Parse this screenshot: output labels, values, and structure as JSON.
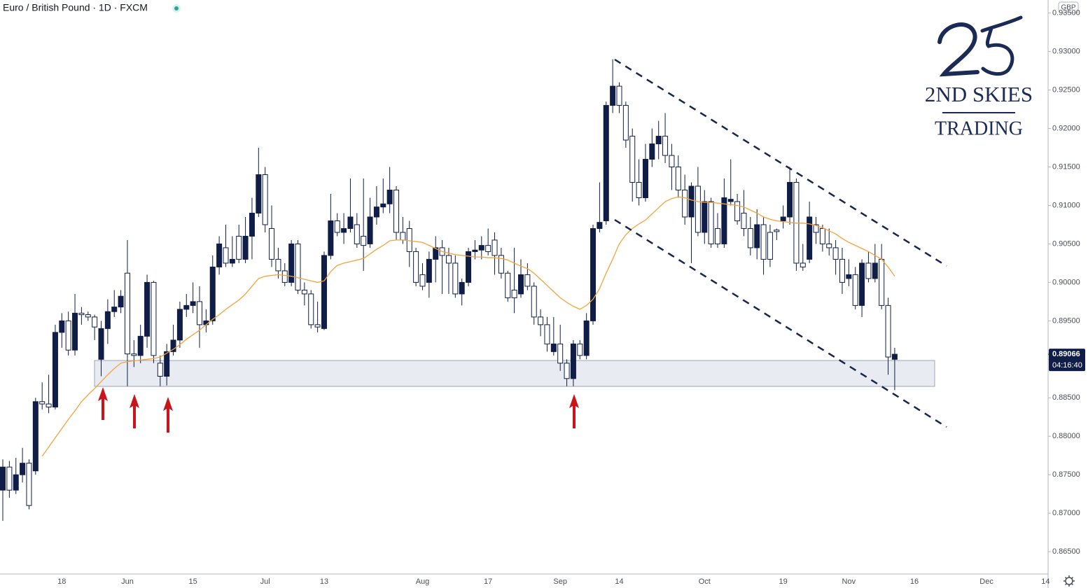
{
  "chart_data": {
    "type": "candlestick",
    "title": "Euro / British Pound · 1D · FXCM",
    "currency": "GBP",
    "logo": {
      "line1": "2ND SKIES",
      "line2": "TRADING"
    },
    "up_color": "#0f1d47",
    "down_color": "#ffffff",
    "wick_color": "#0f1d47",
    "categories": [
      null,
      null,
      null,
      null,
      null,
      null,
      null,
      null,
      null,
      "18",
      null,
      null,
      null,
      null,
      null,
      null,
      null,
      null,
      null,
      "Jun",
      null,
      null,
      null,
      null,
      null,
      null,
      null,
      null,
      null,
      "15",
      null,
      null,
      null,
      null,
      null,
      null,
      null,
      null,
      null,
      null,
      "Jul",
      null,
      null,
      null,
      null,
      null,
      null,
      null,
      null,
      "13",
      null,
      null,
      null,
      null,
      null,
      null,
      null,
      null,
      null,
      null,
      null,
      null,
      null,
      null,
      "Aug",
      null,
      null,
      null,
      null,
      null,
      null,
      null,
      null,
      null,
      "17",
      null,
      null,
      null,
      null,
      null,
      null,
      null,
      null,
      null,
      null,
      "Sep",
      null,
      null,
      null,
      null,
      null,
      null,
      null,
      null,
      "14",
      null,
      null,
      null,
      null,
      null,
      null,
      null,
      null,
      null,
      null,
      null,
      null,
      "Oct",
      null,
      null,
      null,
      null,
      null,
      null,
      null,
      null,
      null,
      null,
      null,
      "19",
      null,
      null,
      null,
      null,
      null,
      null,
      null,
      null,
      null,
      "Nov",
      null,
      null,
      null,
      null,
      null,
      null,
      null,
      null,
      null,
      "16",
      null,
      null,
      null,
      null,
      null,
      null,
      null,
      null,
      null,
      null,
      "Dec",
      null,
      null,
      null,
      null,
      null,
      null,
      null,
      null,
      "14"
    ],
    "open": [
      0.873,
      0.876,
      0.873,
      0.875,
      0.8765,
      0.8755,
      0.8845,
      0.8842,
      0.8838,
      0.8935,
      0.895,
      0.8912,
      0.896,
      0.8958,
      0.8955,
      0.89,
      0.894,
      0.8962,
      0.8968,
      0.9012,
      0.8907,
      0.8905,
      0.893,
      0.9,
      0.8895,
      0.8878,
      0.891,
      0.8925,
      0.8965,
      0.897,
      0.8975,
      0.8945,
      0.895,
      0.902,
      0.9045,
      0.9025,
      0.906,
      0.903,
      0.906,
      0.909,
      0.914,
      0.907,
      0.903,
      0.9015,
      0.9,
      0.905,
      0.899,
      0.8985,
      0.8945,
      0.894,
      0.9035,
      0.908,
      0.9065,
      0.907,
      0.9075,
      0.906,
      0.905,
      0.9085,
      0.9098,
      0.9102,
      0.912,
      0.9065,
      0.907,
      0.904,
      0.901,
      0.9,
      0.903,
      0.9045,
      0.9035,
      0.9025,
      0.8985,
      0.9,
      0.904,
      0.9042,
      0.9048,
      0.9055,
      0.9035,
      0.9012,
      0.899,
      0.8985,
      0.901,
      0.8995,
      0.8955,
      0.8945,
      0.891,
      0.892,
      0.8895,
      0.8875,
      0.892,
      0.8905,
      0.895,
      0.907,
      0.908,
      0.923,
      0.9255,
      0.923,
      0.919,
      0.913,
      0.911,
      0.916,
      0.918,
      0.919,
      0.9165,
      0.915,
      0.912,
      0.9085,
      0.9125,
      0.9065,
      0.9105,
      0.907,
      0.905,
      0.9105,
      0.9105,
      0.909,
      0.907,
      0.9045,
      0.9075,
      0.9065,
      0.9068,
      0.908,
      0.9085,
      0.913,
      0.9025,
      0.903,
      0.9075,
      0.907,
      0.905,
      0.9045,
      0.903,
      0.9005,
      0.901,
      0.897,
      0.9025,
      0.9005,
      0.903,
      0.897,
      0.89,
      null,
      null,
      null,
      null,
      null,
      null,
      null,
      null,
      null,
      null,
      null,
      null,
      null,
      null,
      null,
      null,
      null,
      null,
      null,
      null,
      null,
      null,
      null
    ],
    "high": [
      0.877,
      0.8768,
      0.8772,
      0.8785,
      0.877,
      0.885,
      0.887,
      0.888,
      0.8945,
      0.896,
      0.8962,
      0.8985,
      0.8968,
      0.8962,
      0.8958,
      0.895,
      0.8978,
      0.899,
      0.899,
      0.9055,
      0.8925,
      0.8945,
      0.901,
      0.9002,
      0.8905,
      0.892,
      0.8945,
      0.8975,
      0.8985,
      0.9,
      0.8995,
      0.8965,
      0.9035,
      0.906,
      0.9075,
      0.906,
      0.9075,
      0.9085,
      0.911,
      0.9175,
      0.915,
      0.91,
      0.9045,
      0.9025,
      0.9055,
      0.9055,
      0.9,
      0.899,
      0.8975,
      0.904,
      0.9115,
      0.909,
      0.909,
      0.9135,
      0.909,
      0.9135,
      0.911,
      0.9125,
      0.9135,
      0.915,
      0.9125,
      0.9085,
      0.908,
      0.9045,
      0.9025,
      0.904,
      0.906,
      0.9055,
      0.9045,
      0.9035,
      0.9005,
      0.9045,
      0.9055,
      0.906,
      0.907,
      0.9065,
      0.9045,
      0.9015,
      0.9045,
      0.903,
      0.9025,
      0.9,
      0.8965,
      0.8955,
      0.8955,
      0.8945,
      0.89,
      0.8925,
      0.8925,
      0.896,
      0.9075,
      0.913,
      0.9235,
      0.929,
      0.926,
      0.9235,
      0.92,
      0.916,
      0.918,
      0.92,
      0.921,
      0.922,
      0.918,
      0.9165,
      0.914,
      0.913,
      0.915,
      0.912,
      0.911,
      0.909,
      0.9135,
      0.916,
      0.9115,
      0.912,
      0.9085,
      0.9095,
      0.9085,
      0.9075,
      0.907,
      0.91,
      0.915,
      0.9135,
      0.905,
      0.9105,
      0.9085,
      0.9075,
      0.907,
      0.9055,
      0.9045,
      0.903,
      0.902,
      0.903,
      0.904,
      0.905,
      0.905,
      0.898,
      0.8915,
      null,
      null,
      null,
      null,
      null,
      null,
      null,
      null,
      null,
      null,
      null,
      null,
      null,
      null,
      null,
      null,
      null,
      null,
      null,
      null,
      null,
      null,
      null
    ],
    "low": [
      0.869,
      0.872,
      0.8725,
      0.874,
      0.8705,
      0.875,
      0.8835,
      0.883,
      0.8835,
      0.8915,
      0.8905,
      0.8905,
      0.8945,
      0.895,
      0.8925,
      0.8878,
      0.892,
      0.8955,
      0.896,
      0.8865,
      0.889,
      0.8895,
      0.8915,
      0.8895,
      0.8865,
      0.8866,
      0.8905,
      0.8915,
      0.8955,
      0.896,
      0.8915,
      0.8935,
      0.8945,
      0.901,
      0.902,
      0.902,
      0.9025,
      0.9025,
      0.903,
      0.9085,
      0.9065,
      0.902,
      0.9005,
      0.8995,
      0.8995,
      0.8985,
      0.897,
      0.894,
      0.8935,
      0.8938,
      0.903,
      0.906,
      0.905,
      0.9065,
      0.9045,
      0.9015,
      0.9045,
      0.9075,
      0.909,
      0.909,
      0.9055,
      0.905,
      0.902,
      0.8995,
      0.899,
      0.898,
      0.9,
      0.8985,
      0.8985,
      0.898,
      0.897,
      0.8995,
      0.903,
      0.903,
      0.9035,
      0.901,
      0.9005,
      0.8975,
      0.896,
      0.898,
      0.899,
      0.8945,
      0.893,
      0.891,
      0.8905,
      0.8885,
      0.8865,
      0.8865,
      0.89,
      0.89,
      0.8945,
      0.9065,
      0.9075,
      0.922,
      0.922,
      0.9175,
      0.9105,
      0.91,
      0.9105,
      0.915,
      0.916,
      0.9155,
      0.912,
      0.911,
      0.9075,
      0.9025,
      0.906,
      0.905,
      0.9045,
      0.9045,
      0.9045,
      0.91,
      0.9075,
      0.906,
      0.9035,
      0.903,
      0.901,
      0.902,
      0.9055,
      0.907,
      0.9075,
      0.9015,
      0.9015,
      0.9025,
      0.905,
      0.904,
      0.9035,
      0.901,
      0.8985,
      0.8995,
      0.8965,
      0.8955,
      0.9,
      0.9,
      0.8965,
      0.888,
      0.886,
      null,
      null,
      null,
      null,
      null,
      null,
      null,
      null,
      null,
      null,
      null,
      null,
      null,
      null,
      null,
      null,
      null,
      null,
      null,
      null,
      null,
      null,
      null
    ],
    "close": [
      0.876,
      0.873,
      0.875,
      0.8765,
      0.871,
      0.8845,
      0.8842,
      0.8838,
      0.8935,
      0.895,
      0.8912,
      0.896,
      0.8958,
      0.8955,
      0.8942,
      0.894,
      0.8962,
      0.8968,
      0.8982,
      0.8907,
      0.8905,
      0.893,
      0.9,
      0.8905,
      0.8878,
      0.891,
      0.8925,
      0.8965,
      0.897,
      0.8975,
      0.8945,
      0.895,
      0.902,
      0.905,
      0.9025,
      0.903,
      0.903,
      0.906,
      0.909,
      0.914,
      0.9075,
      0.903,
      0.9015,
      0.9,
      0.905,
      0.899,
      0.8985,
      0.8945,
      0.8942,
      0.9035,
      0.908,
      0.9065,
      0.907,
      0.9085,
      0.905,
      0.9048,
      0.9085,
      0.9098,
      0.9102,
      0.912,
      0.9065,
      0.9055,
      0.904,
      0.9,
      0.8995,
      0.903,
      0.9045,
      0.9035,
      0.9025,
      0.8985,
      0.9,
      0.904,
      0.9042,
      0.9048,
      0.904,
      0.9035,
      0.9012,
      0.898,
      0.898,
      0.901,
      0.8995,
      0.8955,
      0.8945,
      0.892,
      0.892,
      0.8895,
      0.8875,
      0.892,
      0.8905,
      0.895,
      0.907,
      0.9078,
      0.923,
      0.9255,
      0.923,
      0.9185,
      0.913,
      0.911,
      0.916,
      0.918,
      0.919,
      0.9165,
      0.915,
      0.912,
      0.9085,
      0.9125,
      0.9065,
      0.9105,
      0.905,
      0.905,
      0.911,
      0.9108,
      0.908,
      0.907,
      0.9045,
      0.9075,
      0.903,
      0.903,
      0.9066,
      0.9085,
      0.913,
      0.9025,
      0.902,
      0.9085,
      0.9065,
      0.905,
      0.9045,
      0.903,
      0.9,
      0.901,
      0.897,
      0.9025,
      0.9005,
      0.9025,
      0.897,
      0.8903,
      0.89066,
      null,
      null,
      null,
      null,
      null,
      null,
      null,
      null,
      null,
      null,
      null,
      null,
      null,
      null,
      null,
      null,
      null,
      null,
      null,
      null,
      null,
      null,
      null
    ],
    "moving_average": {
      "color": "#f5a33a",
      "values": [
        null,
        null,
        null,
        null,
        null,
        null,
        0.8774,
        0.8786,
        0.8798,
        0.881,
        0.8822,
        0.8833,
        0.8845,
        0.8854,
        0.8862,
        0.8871,
        0.888,
        0.8888,
        0.8895,
        0.8897,
        0.8898,
        0.8899,
        0.89,
        0.8901,
        0.8903,
        0.8908,
        0.8913,
        0.8919,
        0.8926,
        0.8932,
        0.8938,
        0.8945,
        0.8952,
        0.8958,
        0.8965,
        0.8971,
        0.8977,
        0.8985,
        0.8995,
        0.9005,
        0.9008,
        0.9009,
        0.901,
        0.9009,
        0.9008,
        0.9006,
        0.9004,
        0.9002,
        0.9,
        0.9002,
        0.9014,
        0.9022,
        0.9025,
        0.9027,
        0.9029,
        0.9031,
        0.9037,
        0.9043,
        0.9048,
        0.9054,
        0.9055,
        0.9055,
        0.9054,
        0.9053,
        0.9052,
        0.9048,
        0.9044,
        0.904,
        0.9038,
        0.9036,
        0.9035,
        0.9034,
        0.9033,
        0.9033,
        0.9032,
        0.9032,
        0.9031,
        0.9029,
        0.9025,
        0.9021,
        0.9018,
        0.9012,
        0.9004,
        0.8996,
        0.8988,
        0.898,
        0.8974,
        0.8969,
        0.8965,
        0.897,
        0.8978,
        0.8992,
        0.9012,
        0.903,
        0.905,
        0.9062,
        0.907,
        0.9076,
        0.9081,
        0.9089,
        0.9097,
        0.9105,
        0.9109,
        0.9111,
        0.911,
        0.9107,
        0.9105,
        0.9104,
        0.9104,
        0.9103,
        0.9102,
        0.9101,
        0.91,
        0.9098,
        0.9094,
        0.909,
        0.9085,
        0.9082,
        0.908,
        0.9079,
        0.9078,
        0.9077,
        0.9077,
        0.9076,
        0.9074,
        0.9071,
        0.9067,
        0.9063,
        0.9057,
        0.9052,
        0.9048,
        0.9044,
        0.904,
        0.9035,
        0.903,
        0.902,
        0.9008,
        null,
        null,
        null,
        null,
        null,
        null,
        null,
        null,
        null,
        null,
        null,
        null,
        null,
        null,
        null,
        null,
        null,
        null,
        null,
        null,
        null,
        null,
        null
      ]
    },
    "ylim": [
      0.8621,
      0.9367
    ],
    "yticks": [
      {
        "value": 0.865,
        "label": "0.86500"
      },
      {
        "value": 0.87,
        "label": "0.87000"
      },
      {
        "value": 0.875,
        "label": "0.87500"
      },
      {
        "value": 0.88,
        "label": "0.88000"
      },
      {
        "value": 0.885,
        "label": "0.88500"
      },
      {
        "value": 0.89,
        "label": "0.89000"
      },
      {
        "value": 0.895,
        "label": "0.89500"
      },
      {
        "value": 0.9,
        "label": "0.90000"
      },
      {
        "value": 0.905,
        "label": "0.90500"
      },
      {
        "value": 0.91,
        "label": "0.91000"
      },
      {
        "value": 0.915,
        "label": "0.91500"
      },
      {
        "value": 0.92,
        "label": "0.92000"
      },
      {
        "value": 0.925,
        "label": "0.92500"
      },
      {
        "value": 0.93,
        "label": "0.93000"
      },
      {
        "value": 0.935,
        "label": "0.93500"
      }
    ],
    "last_price": {
      "value": 0.89066,
      "label": "0.89066"
    },
    "countdown": "04:16:40"
  }
}
